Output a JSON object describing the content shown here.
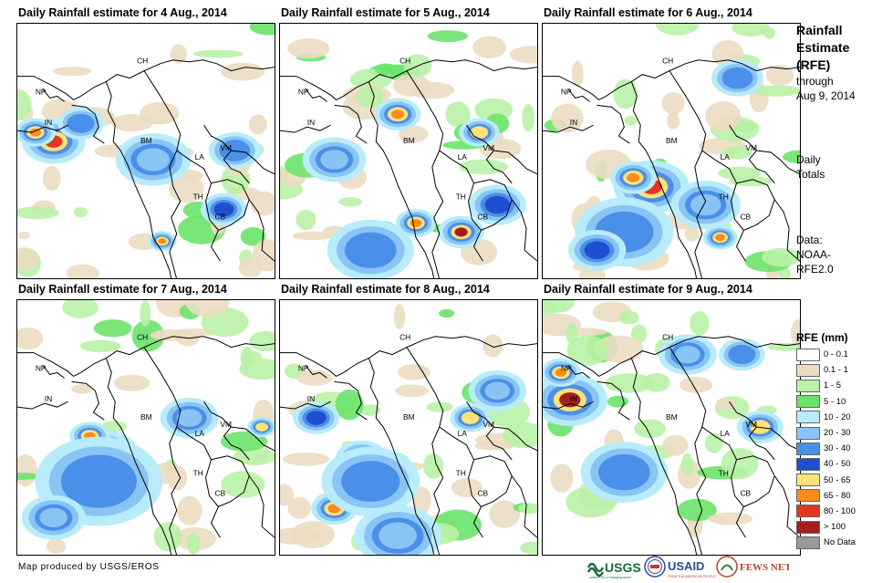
{
  "panels": [
    {
      "title": "Daily Rainfall estimate for 4 Aug., 2014"
    },
    {
      "title": "Daily Rainfall estimate for 5 Aug., 2014"
    },
    {
      "title": "Daily Rainfall estimate for 6 Aug., 2014"
    },
    {
      "title": "Daily Rainfall estimate for 7 Aug., 2014"
    },
    {
      "title": "Daily Rainfall estimate for 8 Aug., 2014"
    },
    {
      "title": "Daily Rainfall estimate for 9 Aug., 2014"
    }
  ],
  "map_labels": {
    "ch": "CH",
    "np": "NP",
    "in": "IN",
    "bm": "BM",
    "la": "LA",
    "vm": "VM",
    "th": "TH",
    "cb": "CB"
  },
  "side": {
    "title_line1": "Rainfall",
    "title_line2": "Estimate",
    "title_line3": "(RFE)",
    "through": "through",
    "date": "Aug 9, 2014",
    "daily": "Daily",
    "totals": "Totals",
    "data_label": "Data:",
    "source1": "NOAA-",
    "source2": "RFE2.0"
  },
  "legend": {
    "title": "RFE (mm)",
    "items": [
      {
        "label": "0 - 0.1",
        "color": "#ffffff"
      },
      {
        "label": "0.1 - 1",
        "color": "#ebdcc2"
      },
      {
        "label": "1 - 5",
        "color": "#b9f2a6"
      },
      {
        "label": "5 - 10",
        "color": "#6be36b"
      },
      {
        "label": "10 - 20",
        "color": "#b9ecfa"
      },
      {
        "label": "20 - 30",
        "color": "#89c4f4"
      },
      {
        "label": "30 - 40",
        "color": "#4a90ea"
      },
      {
        "label": "40 - 50",
        "color": "#1f4fd1"
      },
      {
        "label": "50 - 65",
        "color": "#fde27a"
      },
      {
        "label": "65 - 80",
        "color": "#f68c1f"
      },
      {
        "label": "80 - 100",
        "color": "#e83424"
      },
      {
        "label": "> 100",
        "color": "#a31f1f"
      },
      {
        "label": "No Data",
        "color": "#999999"
      }
    ]
  },
  "credit": "Map produced by USGS/EROS",
  "logos": {
    "usgs": "USGS",
    "usgs_tag": "science for a changing world",
    "usaid": "USAID",
    "usaid_tag": "FROM THE AMERICAN PEOPLE",
    "fews": "FEWS NET"
  }
}
